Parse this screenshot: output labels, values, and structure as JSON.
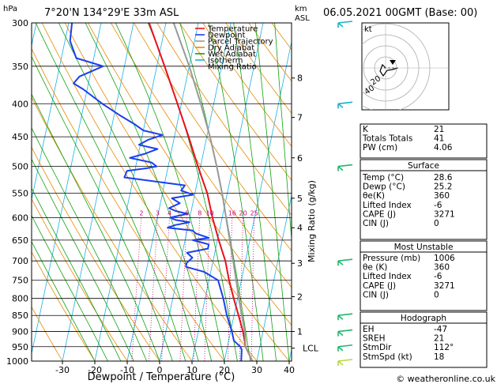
{
  "header": {
    "pressure_unit": "hPa",
    "location": "7°20'N 134°29'E 33m ASL",
    "km_unit": "km",
    "asl": "ASL",
    "datetime": "06.05.2021 00GMT (Base: 00)"
  },
  "footer": {
    "credit": "© weatheronline.co.uk"
  },
  "legend": [
    {
      "label": "Temperature",
      "color": "#e8101a"
    },
    {
      "label": "Dewpoint",
      "color": "#1a3ff0"
    },
    {
      "label": "Parcel Trajectory",
      "color": "#999999"
    },
    {
      "label": "Dry Adiabat",
      "color": "#e88a00"
    },
    {
      "label": "Wet Adiabat",
      "color": "#10a010"
    },
    {
      "label": "Isotherm",
      "color": "#1ab0e8"
    },
    {
      "label": "Mixing Ratio",
      "color": "#cc0077",
      "dotted": true
    }
  ],
  "chart_data": {
    "type": "line",
    "title": "7°20'N 134°29'E 33m ASL",
    "xlabel": "Dewpoint / Temperature (°C)",
    "ylabel": "hPa",
    "y2label": "Mixing Ratio (g/kg)",
    "xlim": [
      -40,
      40
    ],
    "x_ticks": [
      -30,
      -20,
      -10,
      0,
      10,
      20,
      30,
      40
    ],
    "pressure_levels": [
      300,
      350,
      400,
      450,
      500,
      550,
      600,
      650,
      700,
      750,
      800,
      850,
      900,
      950,
      1000
    ],
    "km_ticks": [
      {
        "km": "8",
        "p": 365
      },
      {
        "km": "7",
        "p": 420
      },
      {
        "km": "6",
        "p": 485
      },
      {
        "km": "5",
        "p": 560
      },
      {
        "km": "4",
        "p": 622
      },
      {
        "km": "3",
        "p": 706
      },
      {
        "km": "2",
        "p": 795
      },
      {
        "km": "1",
        "p": 900
      }
    ],
    "lcl": {
      "label": "LCL",
      "p": 955
    },
    "mixing_ratio_labels": [
      "2",
      "3",
      "4",
      "6",
      "8",
      "10",
      "16",
      "20",
      "25"
    ],
    "series": [
      {
        "name": "Temperature",
        "color": "#e8101a",
        "points": [
          [
            1000,
            28.6
          ],
          [
            950,
            25.6
          ],
          [
            900,
            23.8
          ],
          [
            850,
            21.4
          ],
          [
            800,
            18.8
          ],
          [
            750,
            16.2
          ],
          [
            700,
            13.8
          ],
          [
            650,
            10.4
          ],
          [
            600,
            7.0
          ],
          [
            550,
            3.8
          ],
          [
            500,
            -0.8
          ],
          [
            450,
            -5.6
          ],
          [
            400,
            -11.2
          ],
          [
            350,
            -17.6
          ],
          [
            300,
            -25.2
          ]
        ]
      },
      {
        "name": "Dewpoint",
        "color": "#1a3ff0",
        "points": [
          [
            1000,
            25.2
          ],
          [
            960,
            24.6
          ],
          [
            950,
            24.0
          ],
          [
            930,
            21.6
          ],
          [
            900,
            20.4
          ],
          [
            850,
            17.8
          ],
          [
            800,
            15.6
          ],
          [
            750,
            12.8
          ],
          [
            728,
            8.0
          ],
          [
            715,
            2.0
          ],
          [
            705,
            2.0
          ],
          [
            692,
            3.4
          ],
          [
            680,
            1.4
          ],
          [
            670,
            7.6
          ],
          [
            660,
            7.6
          ],
          [
            650,
            2.4
          ],
          [
            645,
            7.2
          ],
          [
            635,
            3.0
          ],
          [
            628,
            1.6
          ],
          [
            622,
            -6.2
          ],
          [
            616,
            -4.0
          ],
          [
            610,
            0.2
          ],
          [
            605,
            -4.2
          ],
          [
            600,
            -6.0
          ],
          [
            592,
            -1.0
          ],
          [
            586,
            -4.8
          ],
          [
            580,
            -7.0
          ],
          [
            570,
            -4.0
          ],
          [
            560,
            -6.8
          ],
          [
            553,
            -0.4
          ],
          [
            545,
            -4.4
          ],
          [
            535,
            -3.6
          ],
          [
            520,
            -22.8
          ],
          [
            508,
            -22.4
          ],
          [
            503,
            -16.2
          ],
          [
            500,
            -13.6
          ],
          [
            493,
            -15.4
          ],
          [
            485,
            -22.4
          ],
          [
            478,
            -18.0
          ],
          [
            470,
            -14.4
          ],
          [
            463,
            -20.4
          ],
          [
            455,
            -18.0
          ],
          [
            447,
            -13.8
          ],
          [
            440,
            -20.0
          ],
          [
            430,
            -23.2
          ],
          [
            418,
            -27.8
          ],
          [
            400,
            -34.4
          ],
          [
            380,
            -41.2
          ],
          [
            372,
            -44.6
          ],
          [
            363,
            -43.2
          ],
          [
            350,
            -36.6
          ],
          [
            340,
            -45.4
          ],
          [
            320,
            -48.4
          ],
          [
            300,
            -49.0
          ]
        ]
      },
      {
        "name": "Parcel Trajectory",
        "color": "#999999",
        "points": [
          [
            1000,
            28.6
          ],
          [
            950,
            25.6
          ],
          [
            900,
            24.4
          ],
          [
            850,
            22.4
          ],
          [
            800,
            20.4
          ],
          [
            750,
            18.4
          ],
          [
            700,
            16.2
          ],
          [
            650,
            13.8
          ],
          [
            600,
            11.2
          ],
          [
            550,
            8.4
          ],
          [
            500,
            5.0
          ],
          [
            450,
            1.0
          ],
          [
            400,
            -4.0
          ],
          [
            350,
            -10.0
          ],
          [
            300,
            -17.6
          ]
        ]
      }
    ],
    "stats": [
      {
        "label": "K",
        "value": "21"
      },
      {
        "label": "Totals Totals",
        "value": "41"
      },
      {
        "label": "PW (cm)",
        "value": "4.06"
      }
    ],
    "surface": {
      "title": "Surface",
      "rows": [
        {
          "label": "Temp (°C)",
          "value": "28.6"
        },
        {
          "label": "Dewp (°C)",
          "value": "25.2"
        },
        {
          "label": "θe(K)",
          "value": "360"
        },
        {
          "label": "Lifted Index",
          "value": "-6"
        },
        {
          "label": "CAPE (J)",
          "value": "3271"
        },
        {
          "label": "CIN (J)",
          "value": "0"
        }
      ]
    },
    "most_unstable": {
      "title": "Most Unstable",
      "rows": [
        {
          "label": "Pressure (mb)",
          "value": "1006"
        },
        {
          "label": "θe (K)",
          "value": "360"
        },
        {
          "label": "Lifted Index",
          "value": "-6"
        },
        {
          "label": "CAPE (J)",
          "value": "3271"
        },
        {
          "label": "CIN (J)",
          "value": "0"
        }
      ]
    },
    "hodograph": {
      "title": "Hodograph",
      "unit": "kt",
      "ring_labels": [
        "20",
        "40"
      ],
      "rows": [
        {
          "label": "EH",
          "value": "-47"
        },
        {
          "label": "SREH",
          "value": "21"
        },
        {
          "label": "StmDir",
          "value": "112°"
        },
        {
          "label": "StmSpd (kt)",
          "value": "18"
        }
      ]
    }
  }
}
